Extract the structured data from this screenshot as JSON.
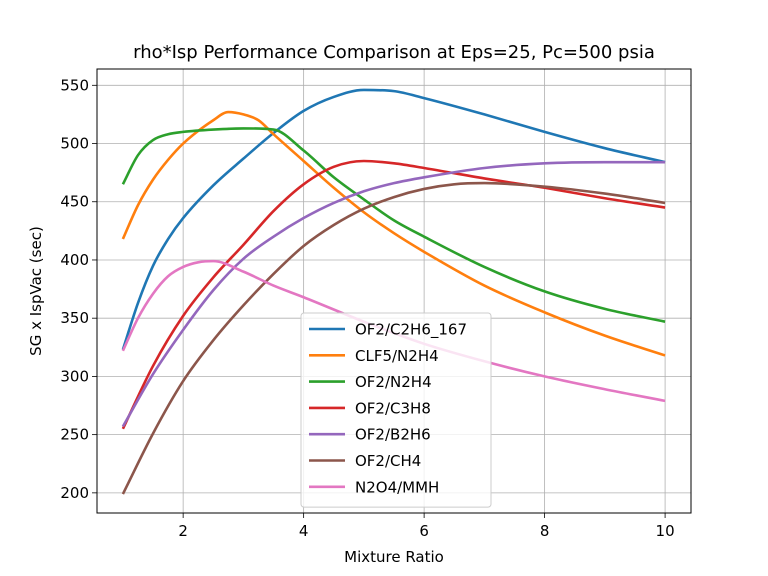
{
  "chart_data": {
    "type": "line",
    "title": "rho*Isp Performance Comparison at Eps=25, Pc=500 psia",
    "xlabel": "Mixture Ratio",
    "ylabel": "SG x IspVac (sec)",
    "xlim": [
      0.57,
      10.43
    ],
    "ylim": [
      182.7,
      564.0
    ],
    "xticks": [
      2,
      4,
      6,
      8,
      10
    ],
    "yticks": [
      200,
      250,
      300,
      350,
      400,
      450,
      500,
      550
    ],
    "grid": true,
    "legend_position": "lower-center",
    "series": [
      {
        "name": "OF2/C2H6_167",
        "color": "#1f77b4",
        "x": [
          1.0,
          1.25,
          1.5,
          1.75,
          2.0,
          2.5,
          3.0,
          3.5,
          4.0,
          4.5,
          5.0,
          5.5,
          6.0,
          7.0,
          8.0,
          9.0,
          10.0
        ],
        "y": [
          323,
          363,
          395,
          418,
          436,
          464,
          487,
          509,
          528,
          540,
          546,
          545,
          539,
          525,
          510,
          496,
          484
        ]
      },
      {
        "name": "CLF5/N2H4",
        "color": "#ff7f0e",
        "x": [
          1.0,
          1.25,
          1.5,
          1.75,
          2.0,
          2.5,
          2.75,
          3.0,
          3.25,
          3.5,
          4.0,
          4.5,
          5.0,
          5.5,
          6.0,
          7.0,
          8.0,
          9.0,
          10.0
        ],
        "y": [
          418,
          447,
          469,
          486,
          500,
          520,
          527,
          525,
          520,
          508,
          485,
          462,
          441,
          423,
          407,
          378,
          355,
          335,
          318
        ]
      },
      {
        "name": "OF2/N2H4",
        "color": "#2ca02c",
        "x": [
          1.0,
          1.25,
          1.5,
          1.75,
          2.0,
          2.5,
          3.0,
          3.5,
          4.0,
          4.5,
          5.0,
          5.5,
          6.0,
          7.0,
          8.0,
          9.0,
          10.0
        ],
        "y": [
          465,
          490,
          503,
          508,
          510,
          512,
          513,
          512,
          494,
          471,
          452,
          434,
          420,
          394,
          373,
          358,
          347
        ]
      },
      {
        "name": "OF2/C3H8",
        "color": "#d62728",
        "x": [
          1.0,
          1.5,
          2.0,
          2.5,
          3.0,
          3.5,
          4.0,
          4.5,
          5.0,
          5.5,
          6.0,
          7.0,
          8.0,
          9.0,
          10.0
        ],
        "y": [
          255,
          309,
          352,
          385,
          413,
          442,
          465,
          480,
          485,
          483,
          479,
          470,
          462,
          453,
          445
        ]
      },
      {
        "name": "OF2/B2H6",
        "color": "#9467bd",
        "x": [
          1.0,
          1.5,
          2.0,
          2.5,
          3.0,
          3.5,
          4.0,
          4.5,
          5.0,
          5.5,
          6.0,
          7.0,
          8.0,
          9.0,
          10.0
        ],
        "y": [
          257,
          302,
          340,
          374,
          401,
          420,
          436,
          449,
          459,
          466,
          471,
          479,
          483,
          484,
          484
        ]
      },
      {
        "name": "OF2/CH4",
        "color": "#8c564b",
        "x": [
          1.0,
          1.5,
          2.0,
          2.5,
          3.0,
          3.5,
          4.0,
          4.5,
          5.0,
          5.5,
          6.0,
          6.5,
          7.0,
          8.0,
          9.0,
          10.0
        ],
        "y": [
          199,
          251,
          296,
          331,
          361,
          388,
          412,
          430,
          444,
          454,
          461,
          465,
          466,
          463,
          457,
          449
        ]
      },
      {
        "name": "N2O4/MMH",
        "color": "#e377c2",
        "x": [
          1.0,
          1.25,
          1.5,
          1.75,
          2.0,
          2.25,
          2.5,
          3.0,
          3.5,
          4.0,
          5.0,
          6.0,
          7.0,
          8.0,
          9.0,
          10.0
        ],
        "y": [
          322,
          350,
          371,
          386,
          394,
          398,
          399,
          390,
          378,
          368,
          347,
          328,
          313,
          300,
          289,
          279
        ]
      }
    ]
  }
}
